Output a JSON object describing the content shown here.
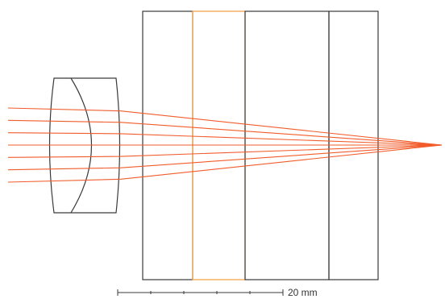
{
  "colors": {
    "ray": "#f25c2b",
    "filter": "#f5a34a",
    "outline": "#3a3a3a"
  },
  "elements": [
    "lens-doublet",
    "plate-1",
    "filter-plate",
    "plate-2",
    "plate-3"
  ],
  "ray_count": 7,
  "scale_bar": {
    "label": "20 mm",
    "value": 20,
    "unit": "mm",
    "ticks": 6
  }
}
